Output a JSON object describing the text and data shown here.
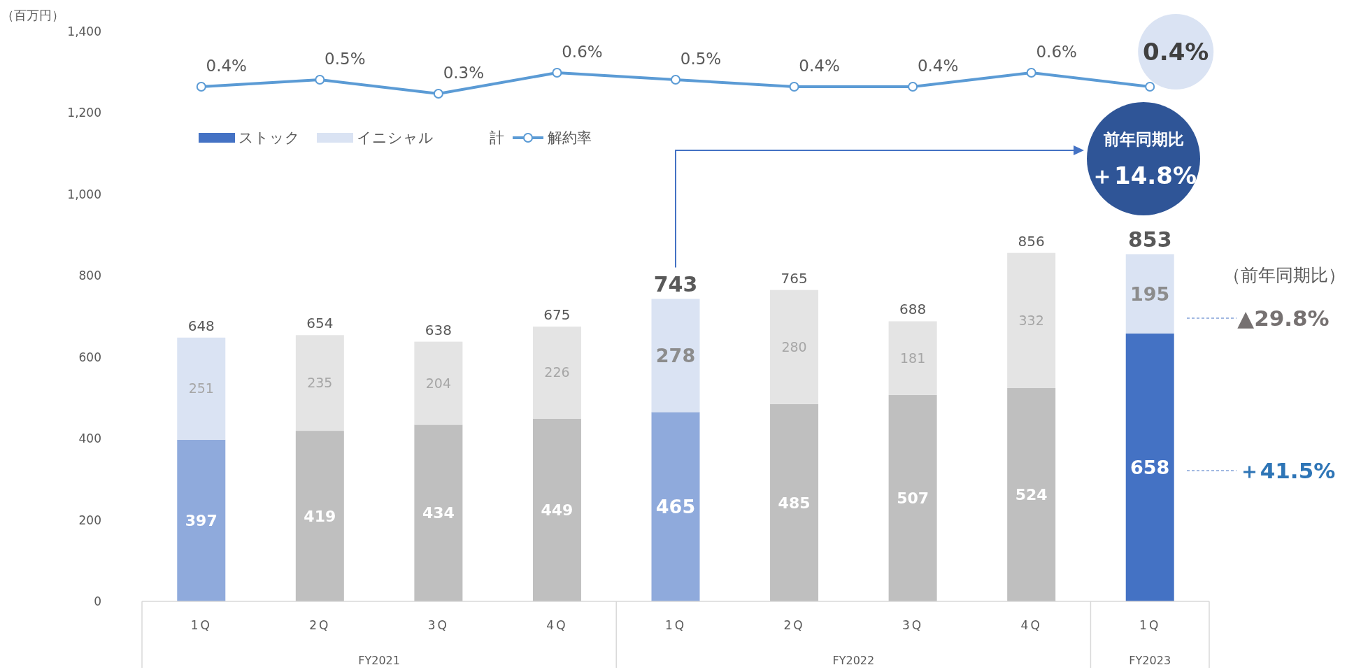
{
  "chart_data": {
    "type": "bar",
    "stacked": true,
    "ylabel": "（百万円）",
    "categories": [
      "1Q",
      "2Q",
      "3Q",
      "4Q",
      "1Q",
      "2Q",
      "3Q",
      "4Q",
      "1Q"
    ],
    "series": [
      {
        "name": "ストック",
        "color": "#4472c4",
        "colors": [
          "#8faadc",
          "#bfbfbf",
          "#bfbfbf",
          "#bfbfbf",
          "#8faadc",
          "#bfbfbf",
          "#bfbfbf",
          "#bfbfbf",
          "#4472c4"
        ],
        "values": [
          397,
          419,
          434,
          449,
          465,
          485,
          507,
          524,
          658
        ]
      },
      {
        "name": "イニシャル",
        "color": "#dae3f3",
        "colors": [
          "#dae3f3",
          "#e4e4e4",
          "#e4e4e4",
          "#e4e4e4",
          "#dae3f3",
          "#e4e4e4",
          "#e4e4e4",
          "#e4e4e4",
          "#dae3f3"
        ],
        "values": [
          251,
          235,
          204,
          226,
          278,
          280,
          181,
          332,
          195
        ]
      },
      {
        "name": "解約率",
        "type": "line",
        "axis": "y2",
        "color": "#5b9bd5",
        "values": [
          0.4,
          0.5,
          0.3,
          0.6,
          0.5,
          0.4,
          0.4,
          0.6,
          0.4
        ],
        "value_labels": [
          "0.4%",
          "0.5%",
          "0.3%",
          "0.6%",
          "0.5%",
          "0.4%",
          "0.4%",
          "0.6%",
          "0.4%"
        ]
      }
    ],
    "totals": [
      "648",
      "654",
      "638",
      "675",
      "743",
      "765",
      "688",
      "856",
      "853"
    ],
    "data_labels": true,
    "marker": "circle",
    "ylim": [
      0,
      1400
    ],
    "yticks": [
      0,
      200,
      400,
      600,
      800,
      {
        "value": 1000,
        "label": "1,000"
      },
      {
        "value": 1200,
        "label": "1,200"
      },
      {
        "value": 1400,
        "label": "1,400"
      }
    ],
    "legend": "top left",
    "grid": false,
    "annotations": [
      "前年同期比",
      "＋14.8%",
      "（前年同期比）",
      "▲29.8%",
      "＋41.5%",
      "計",
      "FY2021",
      "FY2022",
      "FY2023"
    ]
  }
}
